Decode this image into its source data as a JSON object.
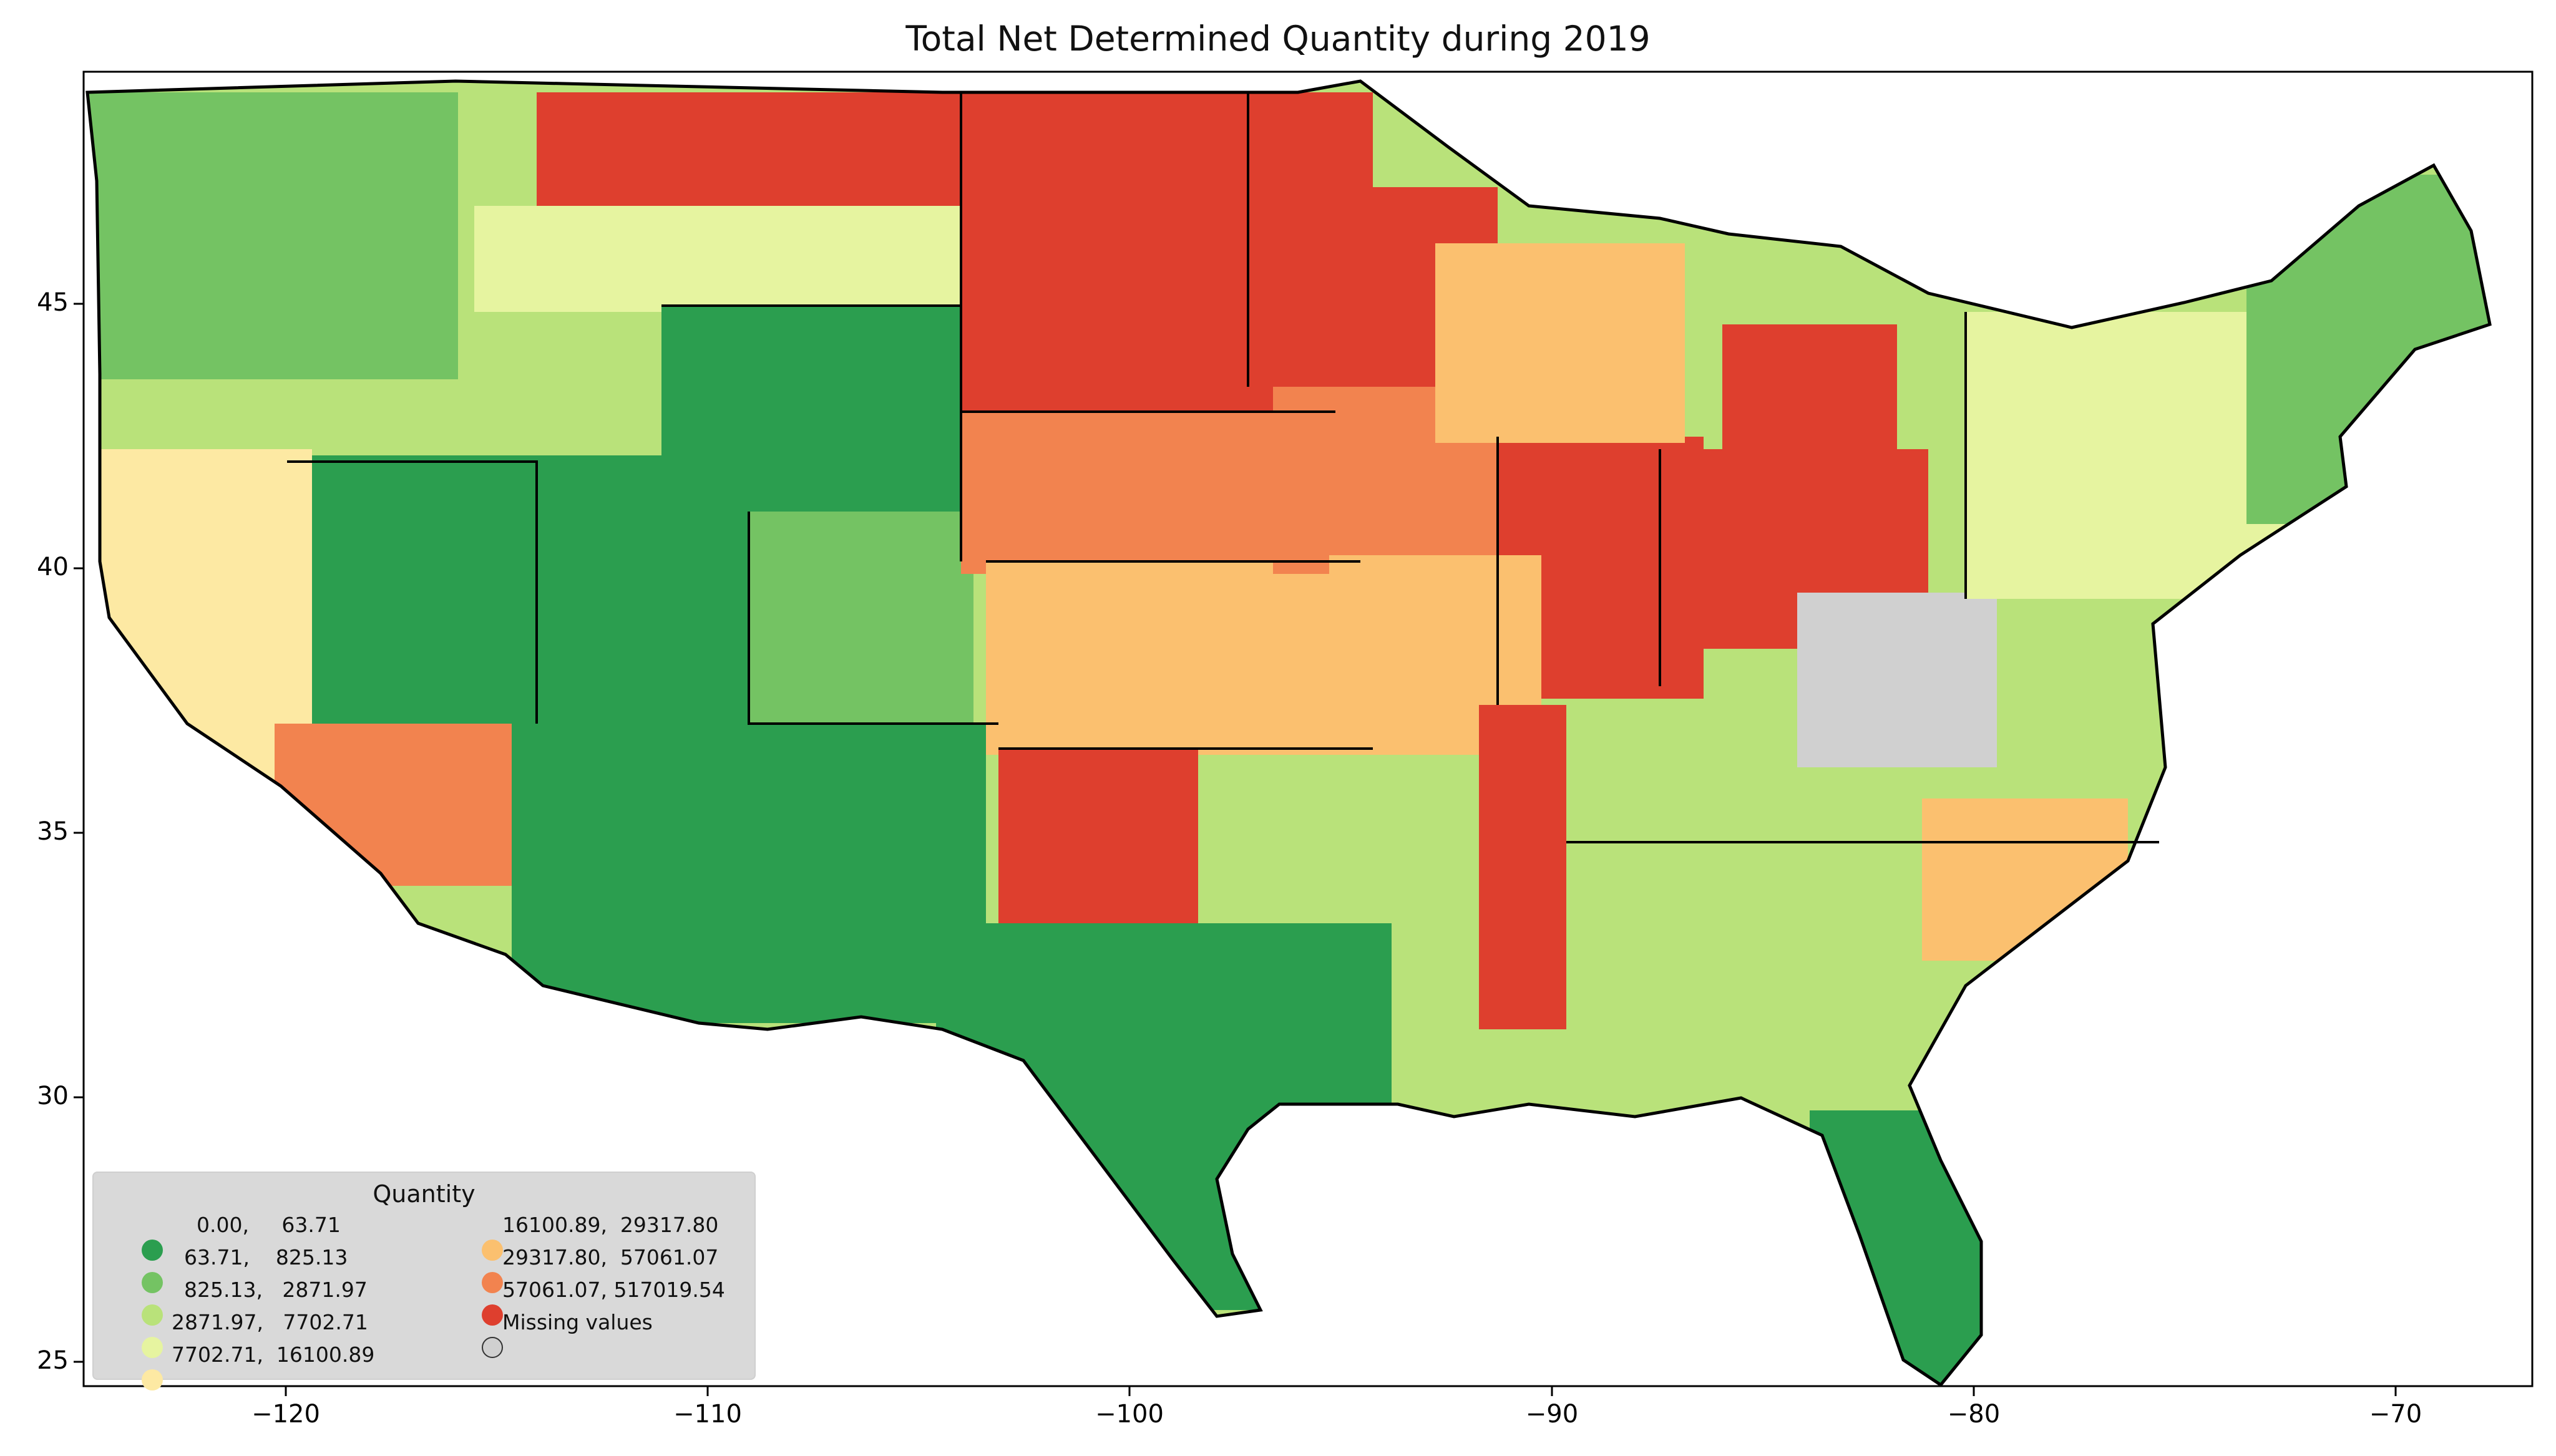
{
  "title": "Total Net Determined Quantity during 2019",
  "axes": {
    "x_ticks": [
      "−120",
      "−110",
      "−100",
      "−90",
      "−80",
      "−70"
    ],
    "y_ticks": [
      "25",
      "30",
      "35",
      "40",
      "45"
    ]
  },
  "legend": {
    "title": "Quantity",
    "items": [
      {
        "label": "0.00,     63.71",
        "color": "#2b9e4f"
      },
      {
        "label": "63.71,    825.13",
        "color": "#74c363"
      },
      {
        "label": "825.13,   2871.97",
        "color": "#b9e27a"
      },
      {
        "label": "2871.97,   7702.71",
        "color": "#e6f4a0"
      },
      {
        "label": "7702.71,  16100.89",
        "color": "#fde9a3"
      },
      {
        "label": "16100.89,  29317.80",
        "color": "#fbc06f"
      },
      {
        "label": "29317.80,  57061.07",
        "color": "#f2834f"
      },
      {
        "label": "57061.07, 517019.54",
        "color": "#de3f2e"
      },
      {
        "label": "Missing values",
        "color": "#d0d0d0"
      }
    ]
  },
  "chart_data": {
    "type": "choropleth",
    "region": "Contiguous United States (counties)",
    "title": "Total Net Determined Quantity during 2019",
    "xlim": [
      -125,
      -66.5
    ],
    "ylim": [
      24.5,
      49.5
    ],
    "legend_placement": "lower-left",
    "classes": [
      [
        0.0,
        63.71
      ],
      [
        63.71,
        825.13
      ],
      [
        825.13,
        2871.97
      ],
      [
        2871.97,
        7702.71
      ],
      [
        7702.71,
        16100.89
      ],
      [
        16100.89,
        29317.8
      ],
      [
        29317.8,
        57061.07
      ],
      [
        57061.07,
        517019.54
      ]
    ]
  }
}
